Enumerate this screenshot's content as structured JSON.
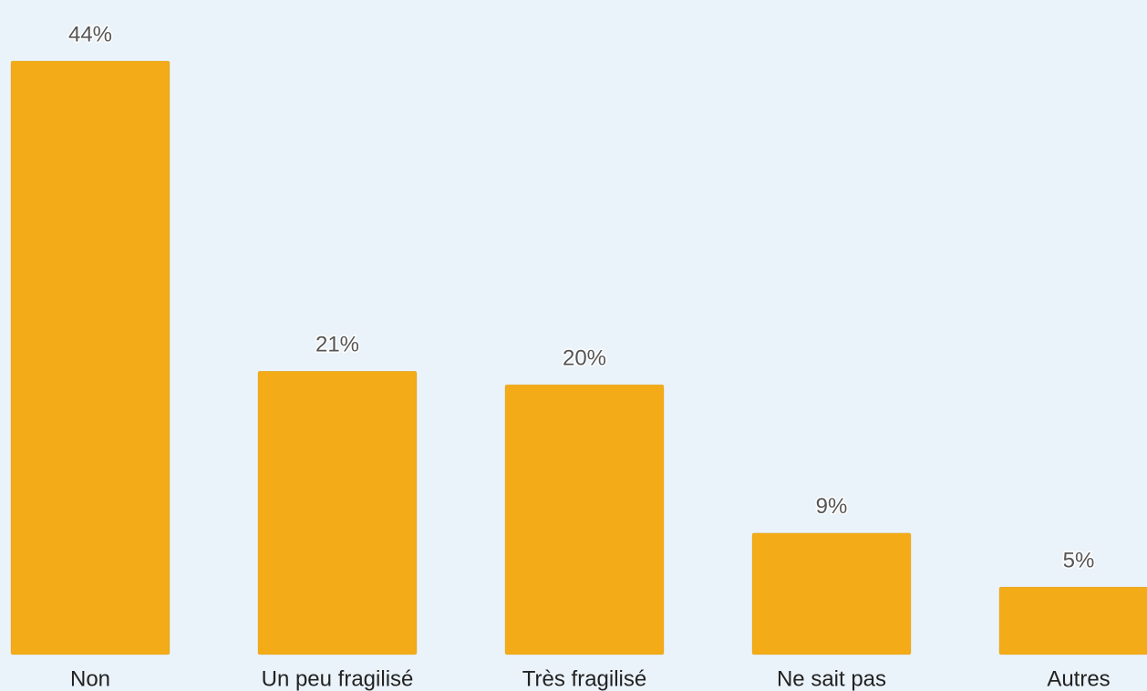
{
  "chart_data": {
    "type": "bar",
    "categories": [
      "Non",
      "Un peu fragilisé",
      "Très fragilisé",
      "Ne sait pas",
      "Autres"
    ],
    "values": [
      44,
      21,
      20,
      9,
      5
    ],
    "value_labels": [
      "44%",
      "21%",
      "20%",
      "9%",
      "5%"
    ],
    "unit": "%",
    "ylim": [
      0,
      44
    ],
    "grid": false,
    "legend": "none",
    "title": "",
    "xlabel": "",
    "ylabel": ""
  },
  "colors": {
    "background": "#ebf3fa",
    "bar": "#f3ac18",
    "value_label": "#555555",
    "category_label": "#222222"
  }
}
